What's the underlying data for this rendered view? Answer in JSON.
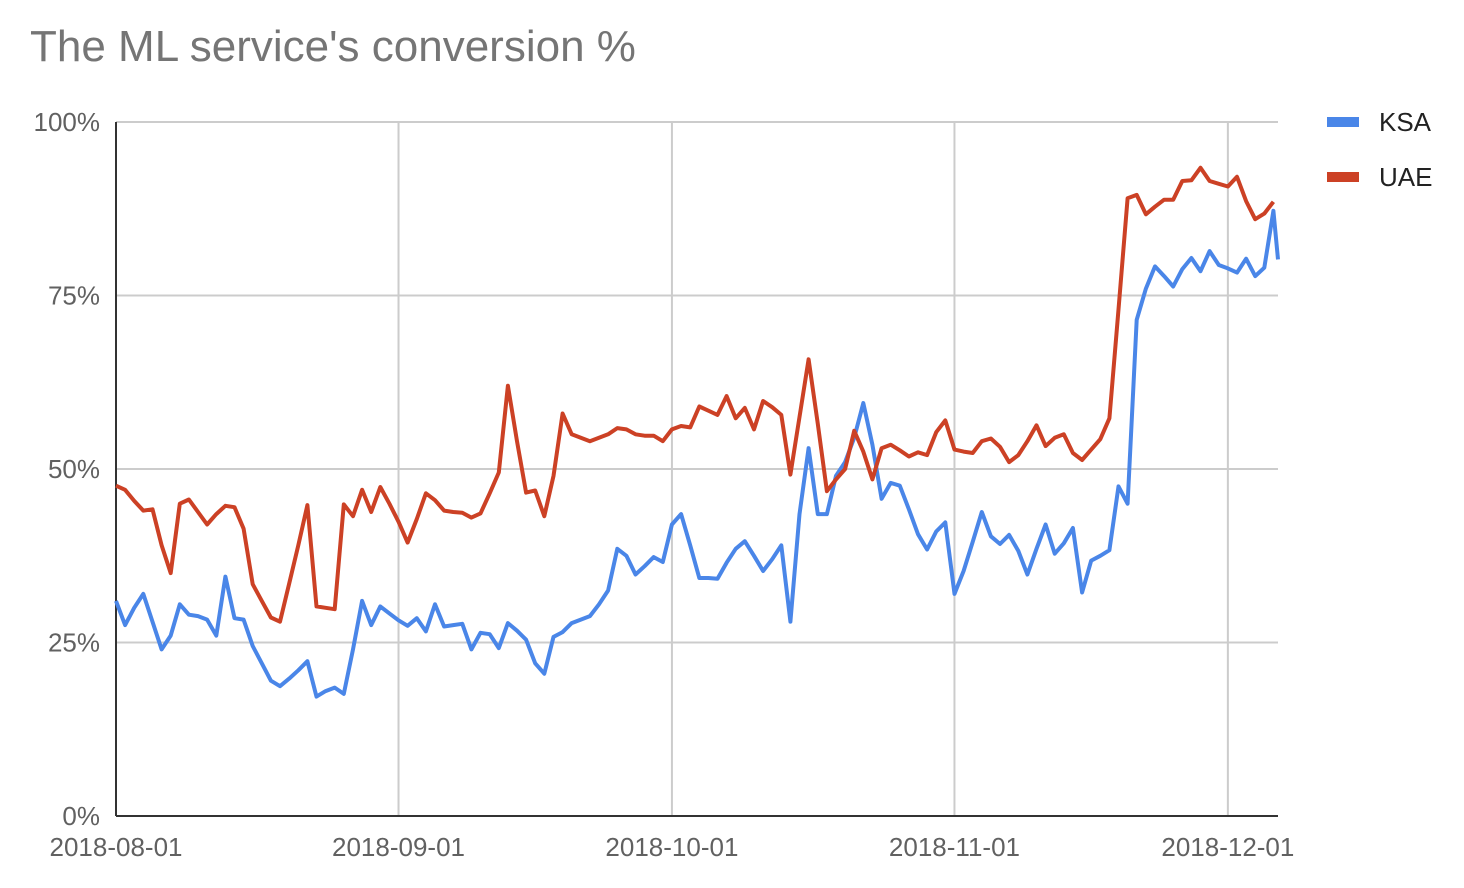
{
  "chart_data": {
    "type": "line",
    "title": "The ML service's conversion %",
    "xlabel": "",
    "ylabel": "",
    "x_range": [
      "2018-08-01",
      "2018-12-06"
    ],
    "ylim": [
      0,
      100
    ],
    "y_ticks": [
      0,
      25,
      50,
      75,
      100
    ],
    "y_tick_labels": [
      "0%",
      "25%",
      "50%",
      "75%",
      "100%"
    ],
    "x_ticks": [
      "2018-08-01",
      "2018-09-01",
      "2018-10-01",
      "2018-11-01",
      "2018-12-01"
    ],
    "grid": true,
    "legend_position": "right",
    "series": [
      {
        "name": "KSA",
        "color": "#4a86e8",
        "points": [
          [
            "2018-08-01",
            31
          ],
          [
            "2018-08-02",
            27.5
          ],
          [
            "2018-08-03",
            30
          ],
          [
            "2018-08-04",
            32
          ],
          [
            "2018-08-05",
            28
          ],
          [
            "2018-08-06",
            24
          ],
          [
            "2018-08-07",
            26
          ],
          [
            "2018-08-08",
            30.5
          ],
          [
            "2018-08-09",
            29
          ],
          [
            "2018-08-10",
            28.8
          ],
          [
            "2018-08-11",
            28.3
          ],
          [
            "2018-08-12",
            26
          ],
          [
            "2018-08-13",
            34.5
          ],
          [
            "2018-08-14",
            28.5
          ],
          [
            "2018-08-15",
            28.3
          ],
          [
            "2018-08-16",
            24.5
          ],
          [
            "2018-08-17",
            22
          ],
          [
            "2018-08-18",
            19.5
          ],
          [
            "2018-08-19",
            18.7
          ],
          [
            "2018-08-20",
            19.8
          ],
          [
            "2018-08-21",
            21
          ],
          [
            "2018-08-22",
            22.3
          ],
          [
            "2018-08-23",
            17.2
          ],
          [
            "2018-08-24",
            18
          ],
          [
            "2018-08-25",
            18.5
          ],
          [
            "2018-08-26",
            17.6
          ],
          [
            "2018-08-27",
            24
          ],
          [
            "2018-08-28",
            31
          ],
          [
            "2018-08-29",
            27.5
          ],
          [
            "2018-08-30",
            30.2
          ],
          [
            "2018-08-31",
            29.2
          ],
          [
            "2018-09-01",
            28.2
          ],
          [
            "2018-09-02",
            27.4
          ],
          [
            "2018-09-03",
            28.5
          ],
          [
            "2018-09-04",
            26.6
          ],
          [
            "2018-09-05",
            30.5
          ],
          [
            "2018-09-06",
            27.3
          ],
          [
            "2018-09-07",
            27.5
          ],
          [
            "2018-09-08",
            27.7
          ],
          [
            "2018-09-09",
            24
          ],
          [
            "2018-09-10",
            26.4
          ],
          [
            "2018-09-11",
            26.2
          ],
          [
            "2018-09-12",
            24.2
          ],
          [
            "2018-09-13",
            27.8
          ],
          [
            "2018-09-14",
            26.7
          ],
          [
            "2018-09-15",
            25.4
          ],
          [
            "2018-09-16",
            22
          ],
          [
            "2018-09-17",
            20.5
          ],
          [
            "2018-09-18",
            25.8
          ],
          [
            "2018-09-19",
            26.5
          ],
          [
            "2018-09-20",
            27.8
          ],
          [
            "2018-09-21",
            28.3
          ],
          [
            "2018-09-22",
            28.8
          ],
          [
            "2018-09-23",
            30.5
          ],
          [
            "2018-09-24",
            32.5
          ],
          [
            "2018-09-25",
            38.5
          ],
          [
            "2018-09-26",
            37.5
          ],
          [
            "2018-09-27",
            34.8
          ],
          [
            "2018-09-28",
            36
          ],
          [
            "2018-09-29",
            37.3
          ],
          [
            "2018-09-30",
            36.6
          ],
          [
            "2018-10-01",
            42
          ],
          [
            "2018-10-02",
            43.5
          ],
          [
            "2018-10-03",
            39
          ],
          [
            "2018-10-04",
            34.3
          ],
          [
            "2018-10-05",
            34.3
          ],
          [
            "2018-10-06",
            34.2
          ],
          [
            "2018-10-07",
            36.5
          ],
          [
            "2018-10-08",
            38.5
          ],
          [
            "2018-10-09",
            39.6
          ],
          [
            "2018-10-10",
            37.5
          ],
          [
            "2018-10-11",
            35.3
          ],
          [
            "2018-10-12",
            37
          ],
          [
            "2018-10-13",
            39
          ],
          [
            "2018-10-14",
            28
          ],
          [
            "2018-10-15",
            43.5
          ],
          [
            "2018-10-16",
            53
          ],
          [
            "2018-10-17",
            43.5
          ],
          [
            "2018-10-18",
            43.5
          ],
          [
            "2018-10-19",
            49
          ],
          [
            "2018-10-20",
            51
          ],
          [
            "2018-10-21",
            54.5
          ],
          [
            "2018-10-22",
            59.5
          ],
          [
            "2018-10-23",
            53.5
          ],
          [
            "2018-10-24",
            45.7
          ],
          [
            "2018-10-25",
            48
          ],
          [
            "2018-10-26",
            47.6
          ],
          [
            "2018-10-27",
            44.2
          ],
          [
            "2018-10-28",
            40.6
          ],
          [
            "2018-10-29",
            38.4
          ],
          [
            "2018-10-30",
            41
          ],
          [
            "2018-10-31",
            42.3
          ],
          [
            "2018-11-01",
            32
          ],
          [
            "2018-11-02",
            35.3
          ],
          [
            "2018-11-03",
            39.5
          ],
          [
            "2018-11-04",
            43.8
          ],
          [
            "2018-11-05",
            40.3
          ],
          [
            "2018-11-06",
            39.2
          ],
          [
            "2018-11-07",
            40.5
          ],
          [
            "2018-11-08",
            38.2
          ],
          [
            "2018-11-09",
            34.8
          ],
          [
            "2018-11-10",
            38.5
          ],
          [
            "2018-11-11",
            42
          ],
          [
            "2018-11-12",
            37.8
          ],
          [
            "2018-11-13",
            39.3
          ],
          [
            "2018-11-14",
            41.5
          ],
          [
            "2018-11-15",
            32.2
          ],
          [
            "2018-11-16",
            36.8
          ],
          [
            "2018-11-17",
            37.5
          ],
          [
            "2018-11-18",
            38.3
          ],
          [
            "2018-11-19",
            47.5
          ],
          [
            "2018-11-20",
            45
          ],
          [
            "2018-11-21",
            71.5
          ],
          [
            "2018-11-22",
            76
          ],
          [
            "2018-11-23",
            79.2
          ],
          [
            "2018-11-24",
            77.8
          ],
          [
            "2018-11-25",
            76.3
          ],
          [
            "2018-11-26",
            78.8
          ],
          [
            "2018-11-27",
            80.4
          ],
          [
            "2018-11-28",
            78.5
          ],
          [
            "2018-11-29",
            81.4
          ],
          [
            "2018-11-30",
            79.4
          ],
          [
            "2018-12-01",
            78.9
          ],
          [
            "2018-12-02",
            78.3
          ],
          [
            "2018-12-03",
            80.3
          ],
          [
            "2018-12-04",
            77.8
          ],
          [
            "2018-12-05",
            79
          ],
          [
            "2018-12-06",
            87.2
          ],
          [
            "2018-12-06T12:00",
            80.2
          ]
        ]
      },
      {
        "name": "UAE",
        "color": "#cc4125",
        "points": [
          [
            "2018-08-01",
            47.6
          ],
          [
            "2018-08-02",
            47
          ],
          [
            "2018-08-03",
            45.4
          ],
          [
            "2018-08-04",
            44
          ],
          [
            "2018-08-05",
            44.2
          ],
          [
            "2018-08-06",
            39
          ],
          [
            "2018-08-07",
            35
          ],
          [
            "2018-08-08",
            45
          ],
          [
            "2018-08-09",
            45.6
          ],
          [
            "2018-08-10",
            43.8
          ],
          [
            "2018-08-11",
            42
          ],
          [
            "2018-08-12",
            43.5
          ],
          [
            "2018-08-13",
            44.7
          ],
          [
            "2018-08-14",
            44.5
          ],
          [
            "2018-08-15",
            41.4
          ],
          [
            "2018-08-16",
            33.4
          ],
          [
            "2018-08-17",
            31
          ],
          [
            "2018-08-18",
            28.6
          ],
          [
            "2018-08-19",
            28
          ],
          [
            "2018-08-20",
            33.5
          ],
          [
            "2018-08-21",
            39
          ],
          [
            "2018-08-22",
            44.8
          ],
          [
            "2018-08-23",
            30.2
          ],
          [
            "2018-08-24",
            30
          ],
          [
            "2018-08-25",
            29.8
          ],
          [
            "2018-08-26",
            44.9
          ],
          [
            "2018-08-27",
            43.2
          ],
          [
            "2018-08-28",
            47
          ],
          [
            "2018-08-29",
            43.8
          ],
          [
            "2018-08-30",
            47.4
          ],
          [
            "2018-08-31",
            45
          ],
          [
            "2018-09-01",
            42.4
          ],
          [
            "2018-09-02",
            39.4
          ],
          [
            "2018-09-03",
            42.8
          ],
          [
            "2018-09-04",
            46.5
          ],
          [
            "2018-09-05",
            45.5
          ],
          [
            "2018-09-06",
            44
          ],
          [
            "2018-09-07",
            43.8
          ],
          [
            "2018-09-08",
            43.7
          ],
          [
            "2018-09-09",
            43
          ],
          [
            "2018-09-10",
            43.6
          ],
          [
            "2018-09-11",
            46.5
          ],
          [
            "2018-09-12",
            49.5
          ],
          [
            "2018-09-13",
            62
          ],
          [
            "2018-09-14",
            54
          ],
          [
            "2018-09-15",
            46.6
          ],
          [
            "2018-09-16",
            46.9
          ],
          [
            "2018-09-17",
            43.2
          ],
          [
            "2018-09-18",
            49
          ],
          [
            "2018-09-19",
            58
          ],
          [
            "2018-09-20",
            55
          ],
          [
            "2018-09-21",
            54.5
          ],
          [
            "2018-09-22",
            54
          ],
          [
            "2018-09-23",
            54.5
          ],
          [
            "2018-09-24",
            55
          ],
          [
            "2018-09-25",
            55.9
          ],
          [
            "2018-09-26",
            55.7
          ],
          [
            "2018-09-27",
            55
          ],
          [
            "2018-09-28",
            54.8
          ],
          [
            "2018-09-29",
            54.8
          ],
          [
            "2018-09-30",
            54
          ],
          [
            "2018-10-01",
            55.7
          ],
          [
            "2018-10-02",
            56.2
          ],
          [
            "2018-10-03",
            56
          ],
          [
            "2018-10-04",
            59
          ],
          [
            "2018-10-05",
            58.4
          ],
          [
            "2018-10-06",
            57.8
          ],
          [
            "2018-10-07",
            60.5
          ],
          [
            "2018-10-08",
            57.3
          ],
          [
            "2018-10-09",
            58.8
          ],
          [
            "2018-10-10",
            55.7
          ],
          [
            "2018-10-11",
            59.8
          ],
          [
            "2018-10-12",
            58.9
          ],
          [
            "2018-10-13",
            57.8
          ],
          [
            "2018-10-14",
            49.2
          ],
          [
            "2018-10-15",
            57.5
          ],
          [
            "2018-10-16",
            65.8
          ],
          [
            "2018-10-17",
            56.5
          ],
          [
            "2018-10-18",
            46.8
          ],
          [
            "2018-10-19",
            48.5
          ],
          [
            "2018-10-20",
            50
          ],
          [
            "2018-10-21",
            55.5
          ],
          [
            "2018-10-22",
            52.5
          ],
          [
            "2018-10-23",
            48.5
          ],
          [
            "2018-10-24",
            53
          ],
          [
            "2018-10-25",
            53.5
          ],
          [
            "2018-10-26",
            52.7
          ],
          [
            "2018-10-27",
            51.8
          ],
          [
            "2018-10-28",
            52.4
          ],
          [
            "2018-10-29",
            52
          ],
          [
            "2018-10-30",
            55.3
          ],
          [
            "2018-10-31",
            57
          ],
          [
            "2018-11-01",
            52.8
          ],
          [
            "2018-11-02",
            52.5
          ],
          [
            "2018-11-03",
            52.3
          ],
          [
            "2018-11-04",
            54
          ],
          [
            "2018-11-05",
            54.4
          ],
          [
            "2018-11-06",
            53.2
          ],
          [
            "2018-11-07",
            51
          ],
          [
            "2018-11-08",
            52
          ],
          [
            "2018-11-09",
            54
          ],
          [
            "2018-11-10",
            56.3
          ],
          [
            "2018-11-11",
            53.3
          ],
          [
            "2018-11-12",
            54.5
          ],
          [
            "2018-11-13",
            55
          ],
          [
            "2018-11-14",
            52.3
          ],
          [
            "2018-11-15",
            51.3
          ],
          [
            "2018-11-16",
            52.8
          ],
          [
            "2018-11-17",
            54.3
          ],
          [
            "2018-11-18",
            57.3
          ],
          [
            "2018-11-19",
            73
          ],
          [
            "2018-11-20",
            89
          ],
          [
            "2018-11-21",
            89.5
          ],
          [
            "2018-11-22",
            86.7
          ],
          [
            "2018-11-23",
            87.8
          ],
          [
            "2018-11-24",
            88.8
          ],
          [
            "2018-11-25",
            88.8
          ],
          [
            "2018-11-26",
            91.5
          ],
          [
            "2018-11-27",
            91.6
          ],
          [
            "2018-11-28",
            93.4
          ],
          [
            "2018-11-29",
            91.5
          ],
          [
            "2018-11-30",
            91.1
          ],
          [
            "2018-12-01",
            90.7
          ],
          [
            "2018-12-02",
            92.1
          ],
          [
            "2018-12-03",
            88.6
          ],
          [
            "2018-12-04",
            86
          ],
          [
            "2018-12-05",
            86.8
          ],
          [
            "2018-12-06",
            88.5
          ]
        ]
      }
    ]
  }
}
